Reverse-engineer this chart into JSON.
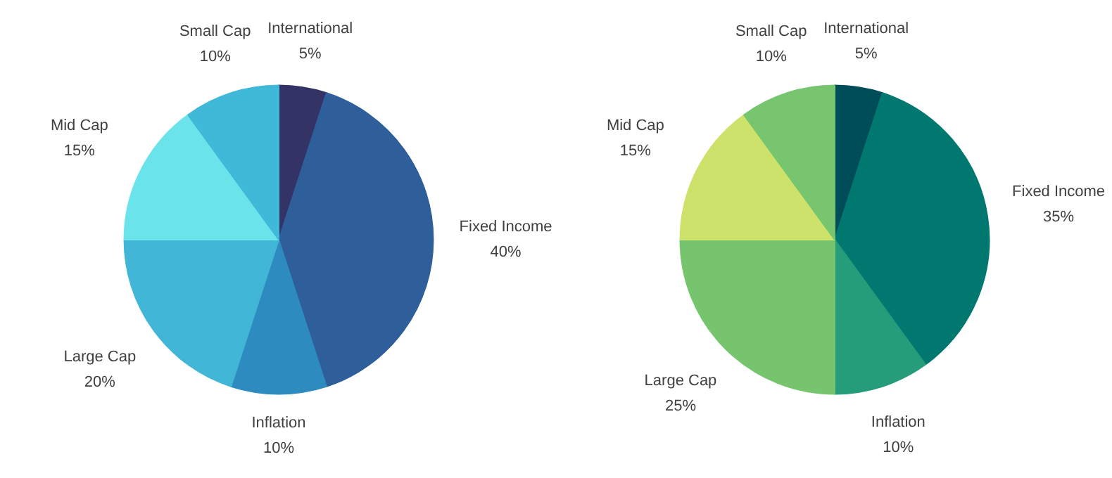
{
  "chart_data": [
    {
      "type": "pie",
      "categories": [
        "International",
        "Fixed Income",
        "Inflation",
        "Large Cap",
        "Mid Cap",
        "Small Cap"
      ],
      "values": [
        5,
        40,
        10,
        20,
        15,
        10
      ],
      "value_labels": [
        "5%",
        "40%",
        "10%",
        "20%",
        "15%",
        "10%"
      ],
      "colors": [
        "#333366",
        "#2e5f9a",
        "#2e8bbf",
        "#41b6d6",
        "#6ae4ea",
        "#40b8d8"
      ]
    },
    {
      "type": "pie",
      "categories": [
        "International",
        "Fixed Income",
        "Inflation",
        "Large Cap",
        "Mid Cap",
        "Small Cap"
      ],
      "values": [
        5,
        35,
        10,
        25,
        15,
        10
      ],
      "value_labels": [
        "5%",
        "35%",
        "10%",
        "25%",
        "15%",
        "10%"
      ],
      "colors": [
        "#004d5a",
        "#007870",
        "#259c7a",
        "#76c56e",
        "#cce26a",
        "#77c56f"
      ]
    }
  ]
}
